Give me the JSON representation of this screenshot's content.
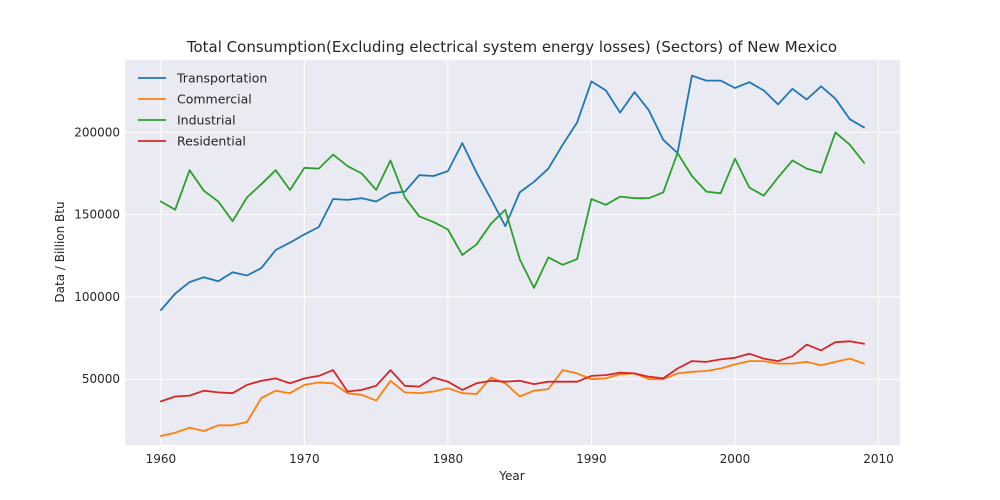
{
  "chart_data": {
    "type": "line",
    "title": "Total Consumption(Excluding electrical system energy losses) (Sectors) of New Mexico",
    "xlabel": "Year",
    "ylabel": "Data / Billion Btu",
    "xlim": [
      1957.5,
      2011.5
    ],
    "ylim": [
      10000,
      244000
    ],
    "xticks": [
      1960,
      1970,
      1980,
      1990,
      2000,
      2010
    ],
    "yticks": [
      50000,
      100000,
      150000,
      200000
    ],
    "grid": true,
    "legend_position": "top-left",
    "x": [
      1960,
      1961,
      1962,
      1963,
      1964,
      1965,
      1966,
      1967,
      1968,
      1969,
      1970,
      1971,
      1972,
      1973,
      1974,
      1975,
      1976,
      1977,
      1978,
      1979,
      1980,
      1981,
      1982,
      1983,
      1984,
      1985,
      1986,
      1987,
      1988,
      1989,
      1990,
      1991,
      1992,
      1993,
      1994,
      1995,
      1996,
      1997,
      1998,
      1999,
      2000,
      2001,
      2002,
      2003,
      2004,
      2005,
      2006,
      2007,
      2008,
      2009
    ],
    "series": [
      {
        "name": "Transportation",
        "color": "#1f77b4",
        "values": [
          92000,
          102000,
          109000,
          112000,
          109500,
          115000,
          113000,
          117500,
          128500,
          133000,
          138000,
          142500,
          159500,
          159000,
          160000,
          158000,
          163000,
          164000,
          174000,
          173500,
          176500,
          193500,
          175500,
          159500,
          143000,
          163500,
          170000,
          178000,
          192500,
          206000,
          231000,
          225500,
          212000,
          224500,
          213500,
          195500,
          187500,
          234500,
          231500,
          231500,
          227000,
          230500,
          225500,
          217000,
          226500,
          220000,
          228000,
          220500,
          208000,
          203000
        ]
      },
      {
        "name": "Commercial",
        "color": "#ff7f0e",
        "values": [
          15500,
          17500,
          20500,
          18500,
          22000,
          22000,
          24000,
          38500,
          43000,
          41500,
          46500,
          48000,
          47500,
          41500,
          40500,
          37000,
          49000,
          42000,
          41500,
          42500,
          44500,
          41500,
          41000,
          51000,
          47500,
          39500,
          43000,
          44000,
          55500,
          53500,
          50000,
          50500,
          53000,
          53500,
          50000,
          50000,
          53500,
          54500,
          55000,
          56500,
          59000,
          61000,
          61000,
          59500,
          59500,
          60500,
          58500,
          60500,
          62500,
          59500
        ]
      },
      {
        "name": "Industrial",
        "color": "#2ca02c",
        "values": [
          158000,
          153000,
          177000,
          164500,
          158000,
          146000,
          160500,
          168500,
          177000,
          165000,
          178500,
          178000,
          186500,
          179500,
          175000,
          165000,
          183000,
          160500,
          149000,
          145500,
          141000,
          125500,
          132000,
          144500,
          153000,
          123000,
          105500,
          124000,
          119500,
          123000,
          159500,
          156000,
          161000,
          160000,
          160000,
          163500,
          187500,
          173500,
          164000,
          163000,
          184000,
          166500,
          161500,
          172500,
          183000,
          178000,
          175500,
          200000,
          192500,
          181500
        ]
      },
      {
        "name": "Residential",
        "color": "#d62728",
        "values": [
          36500,
          39500,
          40000,
          43000,
          42000,
          41500,
          46500,
          49000,
          50500,
          47500,
          50500,
          52000,
          55500,
          42500,
          43500,
          46000,
          55500,
          46000,
          45500,
          51000,
          48500,
          43500,
          47500,
          49000,
          48500,
          49000,
          47000,
          48500,
          48500,
          48500,
          52000,
          52500,
          54000,
          53500,
          51500,
          50500,
          56500,
          61000,
          60500,
          62000,
          63000,
          65500,
          62500,
          61000,
          64000,
          71000,
          67500,
          72500,
          73000,
          71500
        ]
      }
    ]
  }
}
